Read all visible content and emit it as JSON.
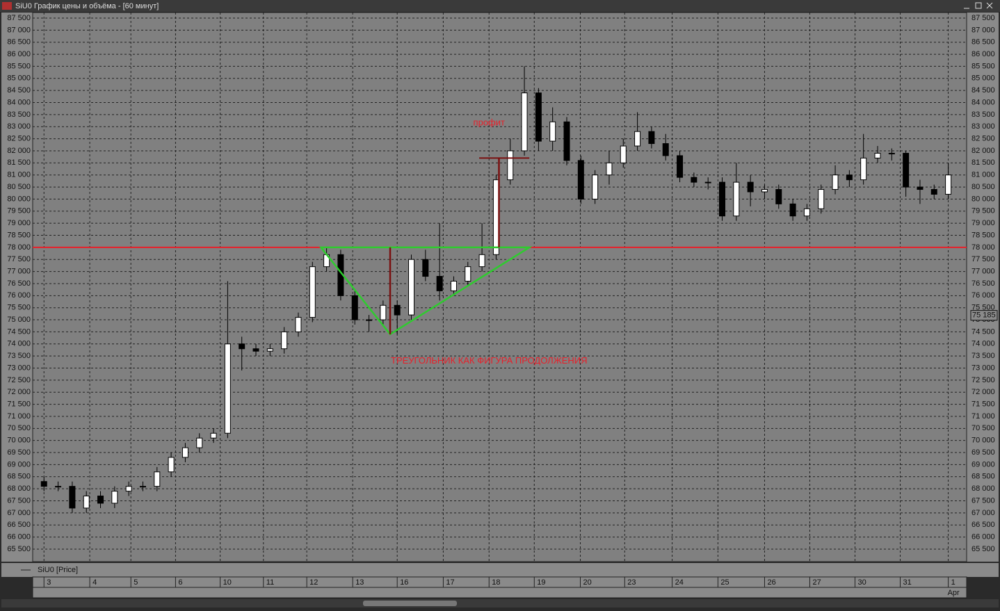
{
  "window_title": "SiU0 График цены и объёма - [60 минут]",
  "chart_data": {
    "type": "candlestick",
    "legend": "SiU0 [Price]",
    "x": [
      0,
      1,
      2,
      3,
      4,
      5,
      6,
      7,
      8,
      9,
      10,
      11,
      12,
      13,
      14,
      15,
      16,
      17,
      18,
      19,
      20,
      21,
      22,
      23,
      24,
      25,
      26,
      27,
      28,
      29,
      30,
      31,
      32,
      33,
      34,
      35,
      36,
      37,
      38,
      39,
      40,
      41,
      42,
      43,
      44,
      45,
      46,
      47,
      48,
      49,
      50,
      51,
      52,
      53,
      54,
      55,
      56,
      57,
      58,
      59,
      60,
      61,
      62,
      63,
      64
    ],
    "open": [
      68300,
      68100,
      68100,
      67200,
      67700,
      67400,
      67900,
      68100,
      68100,
      68700,
      69300,
      69700,
      70100,
      70300,
      74000,
      73800,
      73700,
      73800,
      74500,
      75100,
      77200,
      77700,
      76000,
      75000,
      75000,
      75600,
      75200,
      77500,
      76800,
      76200,
      76600,
      77200,
      77700,
      80800,
      82000,
      84400,
      82400,
      83200,
      81600,
      80000,
      81000,
      81500,
      82200,
      82800,
      82300,
      81800,
      80900,
      80700,
      80700,
      79300,
      80700,
      80300,
      80400,
      79800,
      79300,
      79600,
      80400,
      81000,
      80800,
      81700,
      81900,
      81900,
      80500,
      80400,
      80200
    ],
    "high": [
      68500,
      68300,
      68300,
      67900,
      67900,
      68100,
      68300,
      68300,
      68900,
      69500,
      69900,
      70300,
      70500,
      76600,
      74300,
      74000,
      74000,
      74700,
      75300,
      77400,
      78000,
      77900,
      76200,
      75200,
      75800,
      75800,
      77700,
      77900,
      79000,
      76800,
      77400,
      79000,
      81000,
      82500,
      85500,
      84600,
      83800,
      83400,
      81800,
      81200,
      82000,
      82500,
      83600,
      83000,
      82700,
      82000,
      81100,
      80900,
      80900,
      81500,
      81000,
      80600,
      80600,
      80000,
      79800,
      80600,
      81400,
      81200,
      82700,
      82200,
      82100,
      82000,
      80800,
      80600,
      81500
    ],
    "low": [
      67900,
      67900,
      67000,
      67000,
      67200,
      67200,
      67700,
      67900,
      67900,
      68500,
      69100,
      69500,
      69900,
      70100,
      72900,
      73500,
      73500,
      73600,
      74300,
      74900,
      77000,
      75800,
      74800,
      74500,
      74800,
      74400,
      75000,
      76600,
      75800,
      76000,
      76400,
      77000,
      77500,
      80600,
      81800,
      82000,
      82000,
      81400,
      79800,
      79800,
      80600,
      81300,
      82000,
      82100,
      81600,
      80700,
      80500,
      80400,
      79100,
      79100,
      79700,
      80000,
      79600,
      79100,
      79100,
      79400,
      80200,
      80500,
      80600,
      81500,
      81600,
      80100,
      79800,
      80000,
      80000
    ],
    "close": [
      68100,
      68100,
      67200,
      67700,
      67400,
      67900,
      68100,
      68100,
      68700,
      69300,
      69700,
      70100,
      70300,
      74000,
      73800,
      73700,
      73800,
      74500,
      75100,
      77200,
      77700,
      76000,
      75000,
      75000,
      75600,
      75200,
      77500,
      76800,
      76200,
      76600,
      77200,
      77700,
      80800,
      82000,
      84400,
      82400,
      83200,
      81600,
      80000,
      81000,
      81500,
      82200,
      82800,
      82300,
      81800,
      80900,
      80700,
      80700,
      79300,
      80700,
      80300,
      80400,
      79800,
      79300,
      79600,
      80400,
      81000,
      80800,
      81700,
      81900,
      81900,
      80500,
      80400,
      80200,
      81000
    ],
    "xlim": [
      -0.8,
      65.3
    ],
    "ylim": [
      64980,
      87730
    ],
    "xticks": [
      {
        "value": 0,
        "label": "3"
      },
      {
        "value": 3.24,
        "label": "4"
      },
      {
        "value": 6.15,
        "label": "5"
      },
      {
        "value": 9.31,
        "label": "6"
      },
      {
        "value": 12.47,
        "label": "10"
      },
      {
        "value": 15.53,
        "label": "11"
      },
      {
        "value": 18.6,
        "label": "12"
      },
      {
        "value": 21.85,
        "label": "13"
      },
      {
        "value": 25,
        "label": "16"
      },
      {
        "value": 28.26,
        "label": "17"
      },
      {
        "value": 31.5,
        "label": "18"
      },
      {
        "value": 34.7,
        "label": "19"
      },
      {
        "value": 37.96,
        "label": "20"
      },
      {
        "value": 41.1,
        "label": "23"
      },
      {
        "value": 44.46,
        "label": "24"
      },
      {
        "value": 47.7,
        "label": "25"
      },
      {
        "value": 51,
        "label": "26"
      },
      {
        "value": 54.2,
        "label": "27"
      },
      {
        "value": 57.4,
        "label": "30"
      },
      {
        "value": 60.6,
        "label": "31"
      },
      {
        "value": 64,
        "label": "1"
      }
    ],
    "month_label": "Apr",
    "yticks": [
      {
        "value": 65500,
        "label": "65 500"
      },
      {
        "value": 66000,
        "label": "66 000"
      },
      {
        "value": 66500,
        "label": "66 500"
      },
      {
        "value": 67000,
        "label": "67 000"
      },
      {
        "value": 67500,
        "label": "67 500"
      },
      {
        "value": 68000,
        "label": "68 000"
      },
      {
        "value": 68500,
        "label": "68 500"
      },
      {
        "value": 69000,
        "label": "69 000"
      },
      {
        "value": 69500,
        "label": "69 500"
      },
      {
        "value": 70000,
        "label": "70 000"
      },
      {
        "value": 70500,
        "label": "70 500"
      },
      {
        "value": 71000,
        "label": "71 000"
      },
      {
        "value": 71500,
        "label": "71 500"
      },
      {
        "value": 72000,
        "label": "72 000"
      },
      {
        "value": 72500,
        "label": "72 500"
      },
      {
        "value": 73000,
        "label": "73 000"
      },
      {
        "value": 73500,
        "label": "73 500"
      },
      {
        "value": 74000,
        "label": "74 000"
      },
      {
        "value": 74500,
        "label": "74 500"
      },
      {
        "value": 75000,
        "label": "75 000"
      },
      {
        "value": 75500,
        "label": "75 500"
      },
      {
        "value": 76000,
        "label": "76 000"
      },
      {
        "value": 76500,
        "label": "76 500"
      },
      {
        "value": 77000,
        "label": "77 000"
      },
      {
        "value": 77500,
        "label": "77 500"
      },
      {
        "value": 78000,
        "label": "78 000"
      },
      {
        "value": 78500,
        "label": "78 500"
      },
      {
        "value": 79000,
        "label": "79 000"
      },
      {
        "value": 79500,
        "label": "79 500"
      },
      {
        "value": 80000,
        "label": "80 000"
      },
      {
        "value": 80500,
        "label": "80 500"
      },
      {
        "value": 81000,
        "label": "81 000"
      },
      {
        "value": 81500,
        "label": "81 500"
      },
      {
        "value": 82000,
        "label": "82 000"
      },
      {
        "value": 82500,
        "label": "82 500"
      },
      {
        "value": 83000,
        "label": "83 000"
      },
      {
        "value": 83500,
        "label": "83 500"
      },
      {
        "value": 84000,
        "label": "84 000"
      },
      {
        "value": 84500,
        "label": "84 500"
      },
      {
        "value": 85000,
        "label": "85 000"
      },
      {
        "value": 85500,
        "label": "85 500"
      },
      {
        "value": 86000,
        "label": "86 000"
      },
      {
        "value": 86500,
        "label": "86 500"
      },
      {
        "value": 87000,
        "label": "87 000"
      },
      {
        "value": 87500,
        "label": "87 500"
      }
    ],
    "grid": true,
    "up_color": "#ffffff",
    "down_color": "#000000",
    "last_price": {
      "value": 75185,
      "label": "75 185"
    },
    "level": {
      "value": 78000,
      "color": "#e8202a"
    },
    "triangle": {
      "color": "#2ecc2e",
      "x": [
        19.6,
        24.5,
        34.35
      ],
      "y": [
        78000,
        74400,
        78000
      ]
    },
    "height_marker": {
      "color": "#7a1010",
      "x": 24.5,
      "y": [
        78000,
        74400
      ]
    },
    "target_marker": {
      "color": "#7a1010",
      "x": 32.2,
      "x_cap": [
        30.8,
        34.35
      ],
      "y": [
        78000,
        81700
      ]
    },
    "annotations": [
      {
        "text": "профит",
        "x": 31.5,
        "y": 83150
      },
      {
        "text": "ТРЕУГОЛЬНИК КАК ФИГУРА ПРОДОЛЖЕНИЯ",
        "x": 31.5,
        "y": 73280
      }
    ]
  }
}
